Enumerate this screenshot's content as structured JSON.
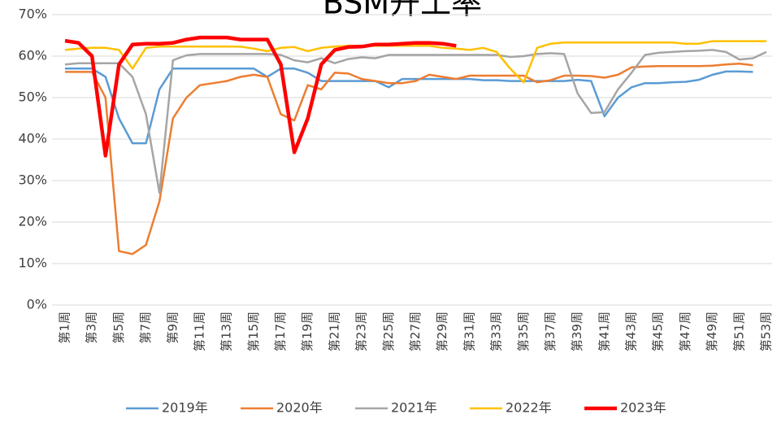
{
  "chart_data": {
    "type": "line",
    "title": "BSM开工率",
    "categories": [
      "第1周",
      null,
      "第3周",
      null,
      "第5周",
      null,
      "第7周",
      null,
      "第9周",
      null,
      "第11周",
      null,
      "第13周",
      null,
      "第15周",
      null,
      "第17周",
      null,
      "第19周",
      null,
      "第21周",
      null,
      "第23周",
      null,
      "第25周",
      null,
      "第27周",
      null,
      "第29周",
      null,
      "第31周",
      null,
      "第33周",
      null,
      "第35周",
      null,
      "第37周",
      null,
      "第39周",
      null,
      "第41周",
      null,
      "第43周",
      null,
      "第45周",
      null,
      "第47周",
      null,
      "第49周",
      null,
      "第51周",
      null,
      "第53周"
    ],
    "ylim": [
      0,
      70
    ],
    "yticks": [
      {
        "value": 0,
        "label": "0%"
      },
      {
        "value": 10,
        "label": "10%"
      },
      {
        "value": 20,
        "label": "20%"
      },
      {
        "value": 30,
        "label": "30%"
      },
      {
        "value": 40,
        "label": "40%"
      },
      {
        "value": 50,
        "label": "50%"
      },
      {
        "value": 60,
        "label": "60%"
      },
      {
        "value": 70,
        "label": "70%"
      }
    ],
    "grid": true,
    "legend": "bottom",
    "series": [
      {
        "name": "2019年",
        "color": "#5b9bd5",
        "values": [
          57,
          57,
          57,
          55,
          45,
          39,
          39,
          52,
          57,
          57,
          57,
          57,
          57,
          57,
          57,
          55,
          57,
          57,
          56,
          54,
          54,
          54,
          54,
          54,
          52.5,
          54.5,
          54.5,
          54.5,
          54.5,
          54.5,
          54.5,
          54.2,
          54.2,
          54,
          54,
          54,
          54,
          54,
          54.3,
          54,
          45.5,
          50,
          52.5,
          53.5,
          53.5,
          53.7,
          53.8,
          54.3,
          55.5,
          56.3,
          56.3,
          56.2,
          null
        ]
      },
      {
        "name": "2020年",
        "color": "#ed7d31",
        "values": [
          56.2,
          56.2,
          56.2,
          50,
          13,
          12.3,
          14.5,
          25,
          45,
          50,
          53,
          53.5,
          54,
          55,
          55.5,
          55,
          46,
          44.5,
          53,
          52,
          56,
          55.8,
          54.5,
          54,
          53.5,
          53.5,
          54,
          55.5,
          55,
          54.5,
          55.3,
          55.3,
          55.3,
          55.3,
          55.3,
          53.7,
          54.2,
          55.3,
          55.3,
          55.2,
          54.8,
          55.5,
          57.3,
          57.5,
          57.6,
          57.6,
          57.6,
          57.6,
          57.7,
          58,
          58.2,
          57.8,
          null
        ]
      },
      {
        "name": "2021年",
        "color": "#a5a5a5",
        "values": [
          58,
          58.3,
          58.3,
          58.3,
          58.3,
          55,
          46,
          27,
          59,
          60.2,
          60.5,
          60.5,
          60.5,
          60.5,
          60.5,
          60.5,
          60.3,
          59,
          58.5,
          59.5,
          58.3,
          59.3,
          59.7,
          59.5,
          60.3,
          60.3,
          60.3,
          60.3,
          60.3,
          60.3,
          60.3,
          60.3,
          60.3,
          59.8,
          60,
          60.5,
          60.7,
          60.5,
          51,
          46.3,
          46.5,
          52,
          56,
          60.3,
          60.8,
          61,
          61.2,
          61.3,
          61.5,
          61,
          59.2,
          59.5,
          61
        ]
      },
      {
        "name": "2022年",
        "color": "#ffc000",
        "values": [
          61.5,
          61.8,
          62,
          62,
          61.5,
          57,
          62,
          62.3,
          62.3,
          62.3,
          62.3,
          62.3,
          62.3,
          62.3,
          61.8,
          61.2,
          62,
          62.2,
          61.2,
          62,
          62.3,
          62.5,
          62.5,
          62.5,
          62.5,
          62.5,
          62.5,
          62.5,
          62,
          61.8,
          61.5,
          62,
          61,
          57,
          53.7,
          62,
          63,
          63.3,
          63.3,
          63.3,
          63.3,
          63.3,
          63.3,
          63.3,
          63.3,
          63.3,
          63,
          63,
          63.6,
          63.6,
          63.6,
          63.6,
          63.6
        ]
      },
      {
        "name": "2023年",
        "color": "#ff0000",
        "values": [
          63.7,
          63.2,
          60,
          36,
          58,
          62.8,
          63,
          63,
          63.2,
          64,
          64.5,
          64.5,
          64.5,
          64,
          64,
          64,
          58,
          36.8,
          45,
          58,
          61.5,
          62.2,
          62.3,
          62.8,
          62.8,
          63,
          63.2,
          63.2,
          63,
          62.5,
          null,
          null,
          null,
          null,
          null,
          null,
          null,
          null,
          null,
          null,
          null,
          null,
          null,
          null,
          null,
          null,
          null,
          null,
          null,
          null,
          null,
          null,
          null
        ]
      }
    ]
  }
}
